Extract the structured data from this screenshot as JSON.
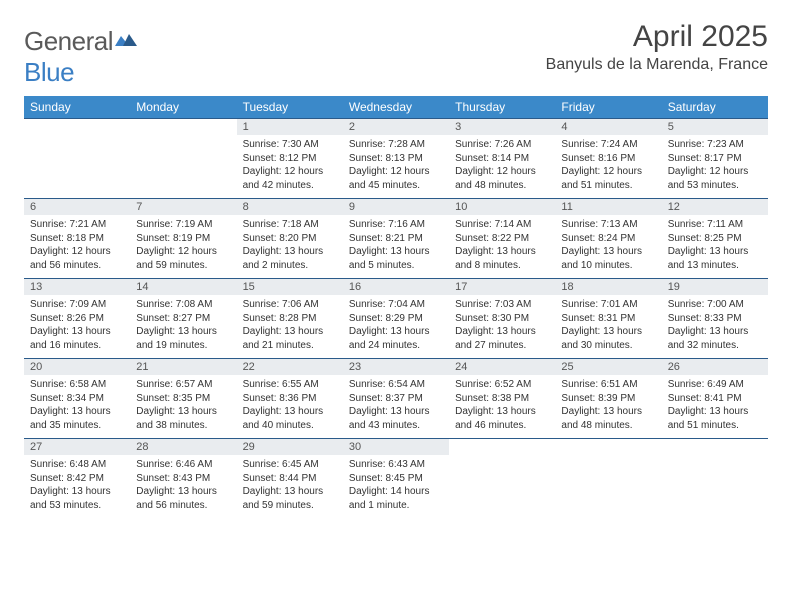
{
  "brand": {
    "part1": "General",
    "part2": "Blue"
  },
  "title": "April 2025",
  "location": "Banyuls de la Marenda, France",
  "colors": {
    "header_bg": "#3b89c9",
    "header_text": "#ffffff",
    "daynum_bg": "#e9ecef",
    "border": "#2a5a8a",
    "brand_gray": "#5a5a5a",
    "brand_blue": "#3b7fc4"
  },
  "weekdays": [
    "Sunday",
    "Monday",
    "Tuesday",
    "Wednesday",
    "Thursday",
    "Friday",
    "Saturday"
  ],
  "weeks": [
    [
      {
        "empty": true
      },
      {
        "empty": true
      },
      {
        "day": "1",
        "sunrise": "Sunrise: 7:30 AM",
        "sunset": "Sunset: 8:12 PM",
        "daylight": "Daylight: 12 hours and 42 minutes."
      },
      {
        "day": "2",
        "sunrise": "Sunrise: 7:28 AM",
        "sunset": "Sunset: 8:13 PM",
        "daylight": "Daylight: 12 hours and 45 minutes."
      },
      {
        "day": "3",
        "sunrise": "Sunrise: 7:26 AM",
        "sunset": "Sunset: 8:14 PM",
        "daylight": "Daylight: 12 hours and 48 minutes."
      },
      {
        "day": "4",
        "sunrise": "Sunrise: 7:24 AM",
        "sunset": "Sunset: 8:16 PM",
        "daylight": "Daylight: 12 hours and 51 minutes."
      },
      {
        "day": "5",
        "sunrise": "Sunrise: 7:23 AM",
        "sunset": "Sunset: 8:17 PM",
        "daylight": "Daylight: 12 hours and 53 minutes."
      }
    ],
    [
      {
        "day": "6",
        "sunrise": "Sunrise: 7:21 AM",
        "sunset": "Sunset: 8:18 PM",
        "daylight": "Daylight: 12 hours and 56 minutes."
      },
      {
        "day": "7",
        "sunrise": "Sunrise: 7:19 AM",
        "sunset": "Sunset: 8:19 PM",
        "daylight": "Daylight: 12 hours and 59 minutes."
      },
      {
        "day": "8",
        "sunrise": "Sunrise: 7:18 AM",
        "sunset": "Sunset: 8:20 PM",
        "daylight": "Daylight: 13 hours and 2 minutes."
      },
      {
        "day": "9",
        "sunrise": "Sunrise: 7:16 AM",
        "sunset": "Sunset: 8:21 PM",
        "daylight": "Daylight: 13 hours and 5 minutes."
      },
      {
        "day": "10",
        "sunrise": "Sunrise: 7:14 AM",
        "sunset": "Sunset: 8:22 PM",
        "daylight": "Daylight: 13 hours and 8 minutes."
      },
      {
        "day": "11",
        "sunrise": "Sunrise: 7:13 AM",
        "sunset": "Sunset: 8:24 PM",
        "daylight": "Daylight: 13 hours and 10 minutes."
      },
      {
        "day": "12",
        "sunrise": "Sunrise: 7:11 AM",
        "sunset": "Sunset: 8:25 PM",
        "daylight": "Daylight: 13 hours and 13 minutes."
      }
    ],
    [
      {
        "day": "13",
        "sunrise": "Sunrise: 7:09 AM",
        "sunset": "Sunset: 8:26 PM",
        "daylight": "Daylight: 13 hours and 16 minutes."
      },
      {
        "day": "14",
        "sunrise": "Sunrise: 7:08 AM",
        "sunset": "Sunset: 8:27 PM",
        "daylight": "Daylight: 13 hours and 19 minutes."
      },
      {
        "day": "15",
        "sunrise": "Sunrise: 7:06 AM",
        "sunset": "Sunset: 8:28 PM",
        "daylight": "Daylight: 13 hours and 21 minutes."
      },
      {
        "day": "16",
        "sunrise": "Sunrise: 7:04 AM",
        "sunset": "Sunset: 8:29 PM",
        "daylight": "Daylight: 13 hours and 24 minutes."
      },
      {
        "day": "17",
        "sunrise": "Sunrise: 7:03 AM",
        "sunset": "Sunset: 8:30 PM",
        "daylight": "Daylight: 13 hours and 27 minutes."
      },
      {
        "day": "18",
        "sunrise": "Sunrise: 7:01 AM",
        "sunset": "Sunset: 8:31 PM",
        "daylight": "Daylight: 13 hours and 30 minutes."
      },
      {
        "day": "19",
        "sunrise": "Sunrise: 7:00 AM",
        "sunset": "Sunset: 8:33 PM",
        "daylight": "Daylight: 13 hours and 32 minutes."
      }
    ],
    [
      {
        "day": "20",
        "sunrise": "Sunrise: 6:58 AM",
        "sunset": "Sunset: 8:34 PM",
        "daylight": "Daylight: 13 hours and 35 minutes."
      },
      {
        "day": "21",
        "sunrise": "Sunrise: 6:57 AM",
        "sunset": "Sunset: 8:35 PM",
        "daylight": "Daylight: 13 hours and 38 minutes."
      },
      {
        "day": "22",
        "sunrise": "Sunrise: 6:55 AM",
        "sunset": "Sunset: 8:36 PM",
        "daylight": "Daylight: 13 hours and 40 minutes."
      },
      {
        "day": "23",
        "sunrise": "Sunrise: 6:54 AM",
        "sunset": "Sunset: 8:37 PM",
        "daylight": "Daylight: 13 hours and 43 minutes."
      },
      {
        "day": "24",
        "sunrise": "Sunrise: 6:52 AM",
        "sunset": "Sunset: 8:38 PM",
        "daylight": "Daylight: 13 hours and 46 minutes."
      },
      {
        "day": "25",
        "sunrise": "Sunrise: 6:51 AM",
        "sunset": "Sunset: 8:39 PM",
        "daylight": "Daylight: 13 hours and 48 minutes."
      },
      {
        "day": "26",
        "sunrise": "Sunrise: 6:49 AM",
        "sunset": "Sunset: 8:41 PM",
        "daylight": "Daylight: 13 hours and 51 minutes."
      }
    ],
    [
      {
        "day": "27",
        "sunrise": "Sunrise: 6:48 AM",
        "sunset": "Sunset: 8:42 PM",
        "daylight": "Daylight: 13 hours and 53 minutes."
      },
      {
        "day": "28",
        "sunrise": "Sunrise: 6:46 AM",
        "sunset": "Sunset: 8:43 PM",
        "daylight": "Daylight: 13 hours and 56 minutes."
      },
      {
        "day": "29",
        "sunrise": "Sunrise: 6:45 AM",
        "sunset": "Sunset: 8:44 PM",
        "daylight": "Daylight: 13 hours and 59 minutes."
      },
      {
        "day": "30",
        "sunrise": "Sunrise: 6:43 AM",
        "sunset": "Sunset: 8:45 PM",
        "daylight": "Daylight: 14 hours and 1 minute."
      },
      {
        "empty": true
      },
      {
        "empty": true
      },
      {
        "empty": true
      }
    ]
  ]
}
